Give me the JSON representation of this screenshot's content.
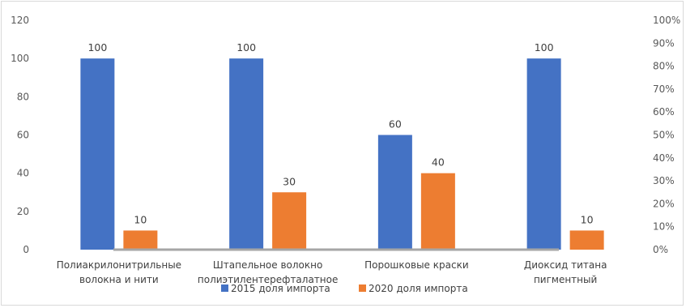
{
  "chart_data": {
    "type": "bar",
    "categories": [
      [
        "Полиакрилонитрильные",
        "волокна и нити"
      ],
      [
        "Штапельное волокно",
        "полиэтилентерефталатное"
      ],
      [
        "Порошковые краски"
      ],
      [
        "Диоксид титана",
        "пигментный"
      ]
    ],
    "series": [
      {
        "name": "2015 доля импорта",
        "values": [
          100,
          100,
          60,
          100
        ],
        "color": "#4472C4"
      },
      {
        "name": "2020 доля импорта",
        "values": [
          10,
          30,
          40,
          10
        ],
        "color": "#ED7D31"
      }
    ],
    "data_labels": true,
    "y_left": {
      "min": 0,
      "max": 120,
      "ticks": [
        0,
        20,
        40,
        60,
        80,
        100,
        120
      ]
    },
    "y_right": {
      "ticks": [
        "0%",
        "10%",
        "20%",
        "30%",
        "40%",
        "50%",
        "60%",
        "70%",
        "80%",
        "90%",
        "100%"
      ]
    },
    "title": "",
    "xlabel": "",
    "ylabel": "",
    "grid": false,
    "legend_position": "bottom"
  }
}
